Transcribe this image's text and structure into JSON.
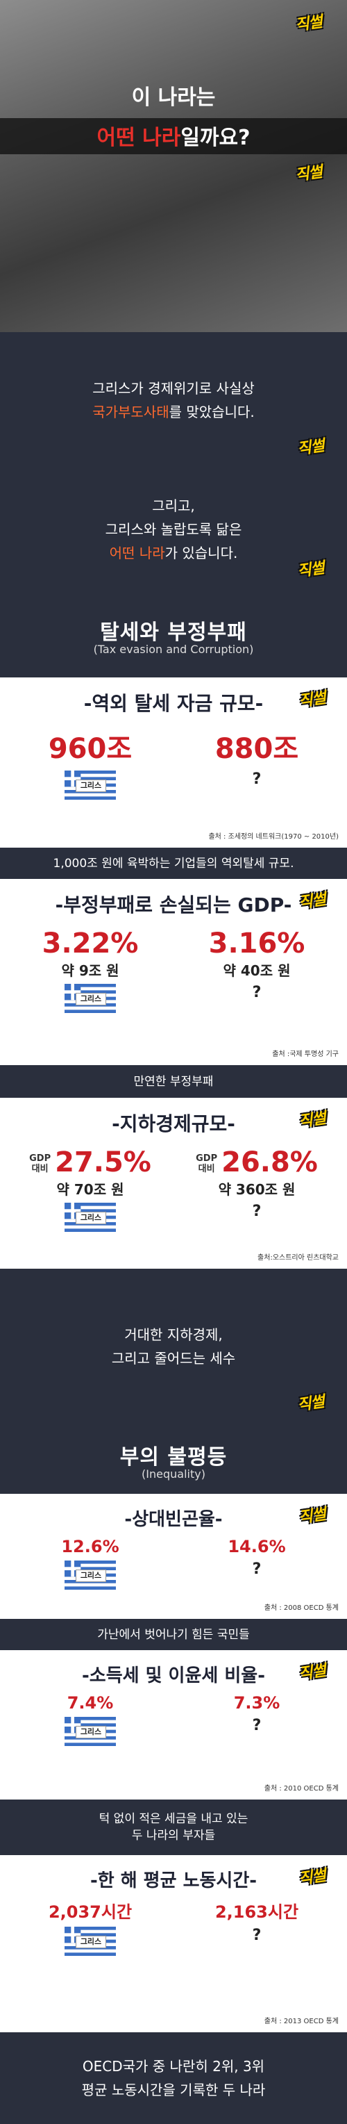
{
  "logo": "직썰",
  "sections": [
    {
      "type": "intro",
      "lines": [
        [
          {
            "text": "이 나라는"
          }
        ],
        [
          {
            "text": "어떤 나라",
            "color": "#e8302a"
          },
          {
            "text": "일까요?"
          }
        ]
      ]
    },
    {
      "type": "caption",
      "lines": [
        [
          {
            "text": "그리스가 경제위기로 사실상"
          }
        ],
        [
          {
            "text": "국가부도사태",
            "color": "#ff6a2e"
          },
          {
            "text": "를 맞았습니다."
          }
        ]
      ]
    },
    {
      "type": "caption",
      "lines": [
        [
          {
            "text": "그리고,"
          }
        ],
        [
          {
            "text": "그리스와 놀랍도록 닮은"
          }
        ],
        [
          {
            "text": "어떤 나라",
            "color": "#ff6a2e"
          },
          {
            "text": "가 있습니다."
          }
        ]
      ]
    },
    {
      "type": "heading",
      "title": "탈세와 부정부패",
      "subtitle": "(Tax evasion and Corruption)"
    },
    {
      "type": "panel",
      "title": "-역외 탈세 자금 규모-",
      "size": "big",
      "columns": [
        {
          "value": "960조",
          "flag": "그리스"
        },
        {
          "value": "880조",
          "mark": "?"
        }
      ],
      "source": "출처 : 조세정의 네트워크(1970 ~ 2010년)"
    },
    {
      "type": "caption",
      "lines": [
        [
          {
            "text": "1,000조 원에 육박하는 기업들의 역외탈세 규모."
          }
        ]
      ]
    },
    {
      "type": "panel",
      "title": "-부정부패로 손실되는 GDP-",
      "size": "big",
      "columns": [
        {
          "value": "3.22%",
          "note": "약 9조 원",
          "flag": "그리스"
        },
        {
          "value": "3.16%",
          "note": "약 40조 원",
          "mark": "?"
        }
      ],
      "source": "출처 :국제 투명성 기구"
    },
    {
      "type": "caption",
      "lines": [
        [
          {
            "text": "만연한 부정부패"
          }
        ]
      ]
    },
    {
      "type": "panel",
      "title": "-지하경제규모-",
      "size": "big",
      "columns": [
        {
          "prefix": [
            "GDP",
            "대비"
          ],
          "value": "27.5%",
          "note": "약 70조 원",
          "flag": "그리스"
        },
        {
          "prefix": [
            "GDP",
            "대비"
          ],
          "value": "26.8%",
          "note": "약 360조 원",
          "mark": "?"
        }
      ],
      "source": "출처:오스트리아 린츠대학교"
    },
    {
      "type": "caption",
      "lines": [
        [
          {
            "text": "거대한 지하경제,"
          }
        ],
        [
          {
            "text": "그리고 줄어드는 세수"
          }
        ]
      ]
    },
    {
      "type": "heading",
      "title": "부의 불평등",
      "subtitle": "(Inequality)"
    },
    {
      "type": "panel",
      "title": "-상대빈곤율-",
      "size": "small",
      "columns": [
        {
          "value": "12.6%",
          "flag": "그리스"
        },
        {
          "value": "14.6%",
          "mark": "?"
        }
      ],
      "source": "출처 : 2008 OECD 통계"
    },
    {
      "type": "caption",
      "lines": [
        [
          {
            "text": "가난에서 벗어나기 힘든 국민들"
          }
        ]
      ]
    },
    {
      "type": "panel",
      "title": "-소득세 및 이윤세 비율-",
      "size": "small",
      "columns": [
        {
          "value": "7.4%",
          "flag": "그리스"
        },
        {
          "value": "7.3%",
          "mark": "?"
        }
      ],
      "source": "출처 : 2010 OECD 통계"
    },
    {
      "type": "caption",
      "lines": [
        [
          {
            "text": "턱 없이 적은 세금을 내고 있는"
          }
        ],
        [
          {
            "text": "두 나라의 부자들"
          }
        ]
      ]
    },
    {
      "type": "panel",
      "title": "-한 해 평균 노동시간-",
      "size": "small",
      "columns": [
        {
          "value": "2,037시간",
          "flag": "그리스"
        },
        {
          "value": "2,163시간",
          "mark": "?"
        }
      ],
      "source": "출처 : 2013 OECD 통계"
    },
    {
      "type": "caption",
      "lines": [
        [
          {
            "text": "OECD국가 중 나란히 2위, 3위"
          }
        ],
        [
          {
            "text": "평균 노동시간을 기록한 두 나라"
          }
        ]
      ]
    }
  ]
}
